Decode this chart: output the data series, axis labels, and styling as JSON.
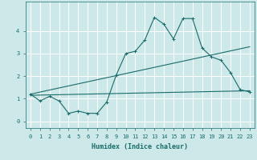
{
  "xlabel": "Humidex (Indice chaleur)",
  "x_ticks": [
    0,
    1,
    2,
    3,
    4,
    5,
    6,
    7,
    8,
    9,
    10,
    11,
    12,
    13,
    14,
    15,
    16,
    17,
    18,
    19,
    20,
    21,
    22,
    23
  ],
  "x_tick_labels": [
    "0",
    "1",
    "2",
    "3",
    "4",
    "5",
    "6",
    "7",
    "8",
    "9",
    "10",
    "11",
    "12",
    "13",
    "14",
    "15",
    "16",
    "17",
    "18",
    "19",
    "20",
    "21",
    "22",
    "23"
  ],
  "ylim": [
    -0.3,
    5.3
  ],
  "xlim": [
    -0.5,
    23.5
  ],
  "yticks": [
    0,
    1,
    2,
    3,
    4
  ],
  "bg_color": "#cce8e8",
  "line_color": "#1a6b6b",
  "grid_color": "#b0d8d8",
  "main_x": [
    0,
    1,
    2,
    3,
    4,
    5,
    6,
    7,
    8,
    9,
    10,
    11,
    12,
    13,
    14,
    15,
    16,
    17,
    18,
    19,
    20,
    21,
    22,
    23
  ],
  "main_y": [
    1.2,
    0.9,
    1.1,
    0.9,
    0.35,
    0.45,
    0.35,
    0.35,
    0.85,
    2.05,
    3.0,
    3.1,
    3.6,
    4.6,
    4.3,
    3.65,
    4.55,
    4.55,
    3.25,
    2.85,
    2.7,
    2.15,
    1.4,
    1.3
  ],
  "line2_x": [
    0,
    23
  ],
  "line2_y": [
    1.2,
    3.3
  ],
  "line3_x": [
    0,
    23
  ],
  "line3_y": [
    1.15,
    1.35
  ]
}
